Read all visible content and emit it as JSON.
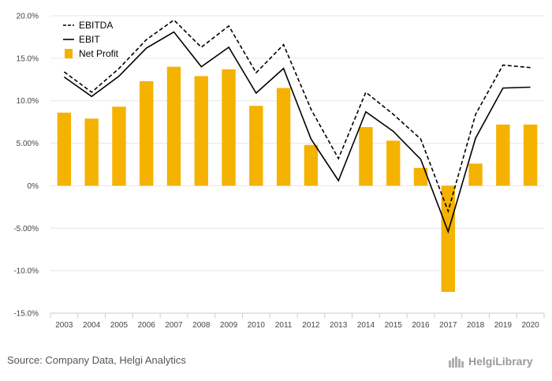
{
  "chart_data": {
    "type": "bar",
    "title": "",
    "xlabel": "",
    "ylabel": "",
    "categories": [
      "2003",
      "2004",
      "2005",
      "2006",
      "2007",
      "2008",
      "2009",
      "2010",
      "2011",
      "2012",
      "2013",
      "2014",
      "2015",
      "2016",
      "2017",
      "2018",
      "2019",
      "2020"
    ],
    "ylim": [
      -15,
      20
    ],
    "yticks": [
      20,
      15,
      10,
      5,
      0,
      -5,
      -10,
      -15
    ],
    "ytick_labels": [
      "20.0%",
      "15.0%",
      "10.0%",
      "5.00%",
      "0%",
      "-5.00%",
      "-10.0%",
      "-15.0%"
    ],
    "series": [
      {
        "name": "EBITDA",
        "type": "line",
        "style": "dashed",
        "color": "#000000",
        "values": [
          13.4,
          11.0,
          13.8,
          17.2,
          19.5,
          16.3,
          18.8,
          13.3,
          16.6,
          9.0,
          3.2,
          11.0,
          8.4,
          5.5,
          -3.0,
          8.4,
          14.2,
          13.9
        ]
      },
      {
        "name": "EBIT",
        "type": "line",
        "style": "solid",
        "color": "#000000",
        "values": [
          12.8,
          10.5,
          12.9,
          16.2,
          18.1,
          14.0,
          16.3,
          10.9,
          13.8,
          5.5,
          0.6,
          8.7,
          6.4,
          3.1,
          -5.4,
          5.6,
          11.5,
          11.6
        ]
      },
      {
        "name": "Net Profit",
        "type": "bar",
        "color": "#f5b200",
        "values": [
          8.6,
          7.9,
          9.3,
          12.3,
          14.0,
          12.9,
          13.7,
          9.4,
          11.5,
          4.8,
          0.0,
          6.9,
          5.3,
          2.1,
          -12.5,
          2.6,
          7.2,
          7.2
        ]
      }
    ],
    "legend_position": "top-left"
  },
  "footer": {
    "source_text": "Source: Company Data, Helgi Analytics",
    "brand_text": "HelgiLibrary"
  },
  "colors": {
    "bar": "#f5b200",
    "grid": "#e6e6e6",
    "axis": "#cccccc"
  }
}
